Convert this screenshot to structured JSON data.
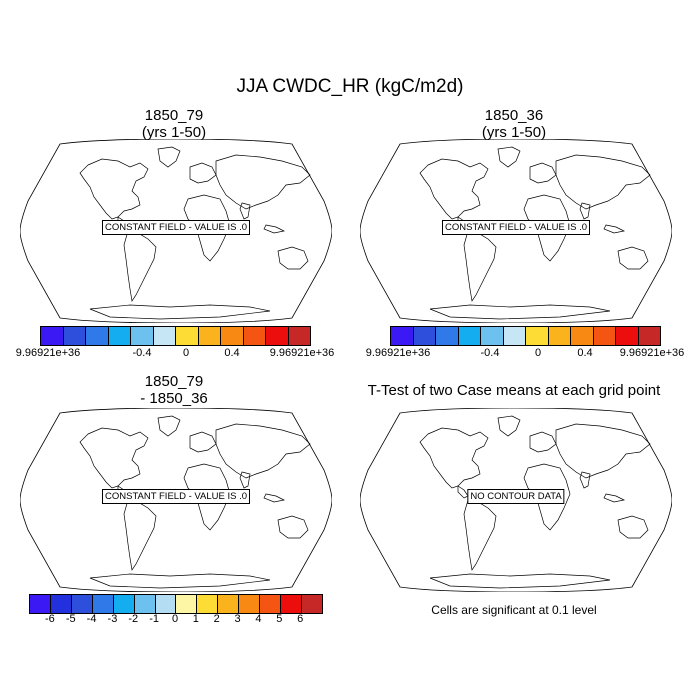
{
  "title": "JJA CWDC_HR (kgC/m2d)",
  "panels": [
    {
      "title_line1": "1850_79",
      "title_line2": "(yrs 1-50)",
      "label": "CONSTANT FIELD - VALUE IS .0"
    },
    {
      "title_line1": "1850_36",
      "title_line2": "(yrs 1-50)",
      "label": "CONSTANT FIELD - VALUE IS .0"
    },
    {
      "title_line1": "1850_79",
      "title_line2": "- 1850_36",
      "label": "CONSTANT FIELD - VALUE IS .0"
    },
    {
      "title_line1": "T-Test of two Case means at each grid point",
      "label": "NO CONTOUR DATA"
    }
  ],
  "colorbar_top": {
    "colors": [
      "#3b19f5",
      "#2e4fdc",
      "#2f7ae8",
      "#14aef0",
      "#6cc1ee",
      "#c7e6f5",
      "#fcdc35",
      "#fab31c",
      "#f88a14",
      "#f45512",
      "#ec0d0d",
      "#c62828"
    ],
    "labels": [
      "9.96921e+36",
      "-0.4",
      "0",
      "0.4",
      "9.96921e+36"
    ]
  },
  "colorbar_diff": {
    "colors": [
      "#3b19f5",
      "#2230dd",
      "#2e4fdc",
      "#2f7ae8",
      "#14aef0",
      "#6cc1ee",
      "#b4dcf2",
      "#fdf6a5",
      "#fcdc35",
      "#fab31c",
      "#f88a14",
      "#f45512",
      "#ec0d0d",
      "#c62828"
    ],
    "labels": [
      "-6",
      "-5",
      "-4",
      "-3",
      "-2",
      "-1",
      "0",
      "1",
      "2",
      "3",
      "4",
      "5",
      "6"
    ]
  },
  "significance_note": "Cells are significant at 0.1 level"
}
